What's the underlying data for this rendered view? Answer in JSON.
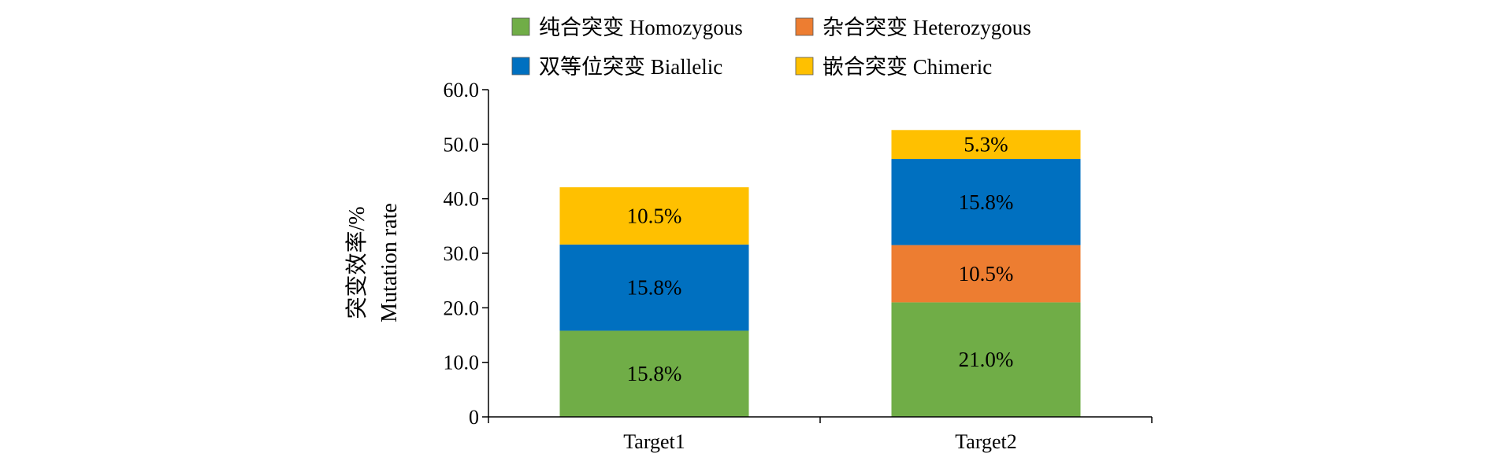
{
  "chart_data": {
    "type": "bar",
    "stacked": true,
    "categories": [
      "Target1",
      "Target2"
    ],
    "ylabel_cn": "突变效率/%",
    "ylabel_en": "Mutation rate",
    "ylim": [
      0,
      60
    ],
    "yticks": [
      "0",
      "10.0",
      "20.0",
      "30.0",
      "40.0",
      "50.0",
      "60.0"
    ],
    "grid": false,
    "legend_position": "top",
    "series": [
      {
        "name": "纯合突变 Homozygous",
        "color": "#70AD47",
        "values": [
          15.8,
          21.0
        ],
        "labels": [
          "15.8%",
          "21.0%"
        ]
      },
      {
        "name": "杂合突变 Heterozygous",
        "color": "#ED7D31",
        "values": [
          0,
          10.5
        ],
        "labels": [
          "",
          "10.5%"
        ]
      },
      {
        "name": "双等位突变 Biallelic",
        "color": "#0070C0",
        "values": [
          15.8,
          15.8
        ],
        "labels": [
          "15.8%",
          "15.8%"
        ]
      },
      {
        "name": "嵌合突变 Chimeric",
        "color": "#FFC000",
        "values": [
          10.5,
          5.3
        ],
        "labels": [
          "10.5%",
          "5.3%"
        ]
      }
    ]
  }
}
